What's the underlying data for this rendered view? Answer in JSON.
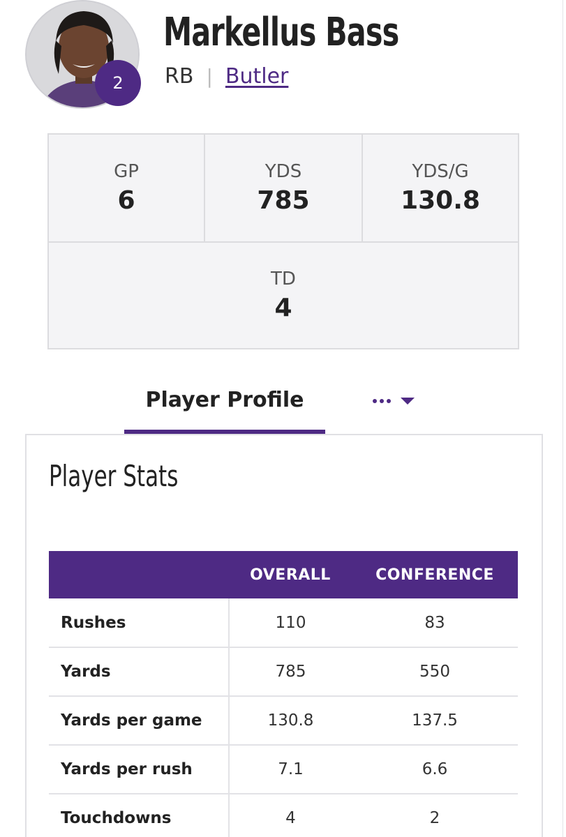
{
  "player": {
    "name": "Markellus Bass",
    "jersey_number": "2",
    "position": "RB",
    "separator": "|",
    "team": "Butler"
  },
  "summary_stats": [
    {
      "label": "GP",
      "value": "6"
    },
    {
      "label": "YDS",
      "value": "785"
    },
    {
      "label": "YDS/G",
      "value": "130.8"
    },
    {
      "label": "TD",
      "value": "4"
    }
  ],
  "tabs": {
    "active_label": "Player Profile",
    "more_icon": "ellipsis-dropdown-icon"
  },
  "player_stats": {
    "title": "Player Stats",
    "columns": [
      "",
      "OVERALL",
      "CONFERENCE"
    ],
    "rows": [
      {
        "label": "Rushes",
        "overall": "110",
        "conference": "83"
      },
      {
        "label": "Yards",
        "overall": "785",
        "conference": "550"
      },
      {
        "label": "Yards per game",
        "overall": "130.8",
        "conference": "137.5"
      },
      {
        "label": "Yards per rush",
        "overall": "7.1",
        "conference": "6.6"
      },
      {
        "label": "Touchdowns",
        "overall": "4",
        "conference": "2"
      }
    ]
  },
  "colors": {
    "accent": "#4e2a84",
    "stat_box_bg": "#f4f4f6",
    "border": "#dcdcdf"
  }
}
